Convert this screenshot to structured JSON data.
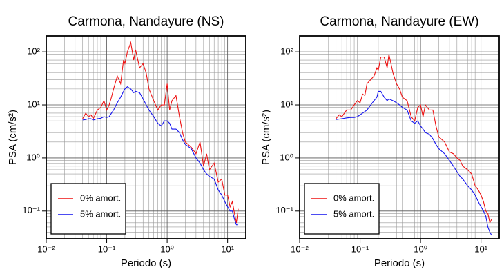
{
  "chart_data": [
    {
      "type": "line",
      "title": "Carmona, Nandayure (NS)",
      "xlabel": "Periodo (s)",
      "ylabel": "PSA (cm/s²)",
      "xscale": "log",
      "yscale": "log",
      "grid": true,
      "legend": "lower left",
      "xlim": [
        0.01,
        20
      ],
      "ylim": [
        0.03,
        200
      ],
      "xticks": [
        {
          "value": 0.01,
          "label": "10⁻²"
        },
        {
          "value": 0.1,
          "label": "10⁻¹"
        },
        {
          "value": 1,
          "label": "10⁰"
        },
        {
          "value": 10,
          "label": "10¹"
        }
      ],
      "yticks": [
        {
          "value": 0.1,
          "label": "10⁻¹"
        },
        {
          "value": 1,
          "label": "10⁰"
        },
        {
          "value": 10,
          "label": "10¹"
        },
        {
          "value": 100,
          "label": "10²"
        }
      ],
      "x": [
        0.04,
        0.045,
        0.05,
        0.055,
        0.06,
        0.07,
        0.08,
        0.09,
        0.1,
        0.11,
        0.12,
        0.13,
        0.15,
        0.17,
        0.19,
        0.2,
        0.22,
        0.25,
        0.28,
        0.3,
        0.35,
        0.4,
        0.45,
        0.5,
        0.6,
        0.7,
        0.8,
        0.9,
        1.0,
        1.1,
        1.2,
        1.4,
        1.6,
        1.8,
        2.0,
        2.5,
        3,
        3.5,
        4,
        4.5,
        5,
        6,
        7,
        8,
        9,
        10,
        11,
        12,
        13,
        14,
        15
      ],
      "series": [
        {
          "name": "0% amort.",
          "color": "#ee1111",
          "values": [
            5.5,
            7,
            6,
            6.5,
            5.5,
            8,
            9,
            12,
            8,
            10,
            14,
            20,
            35,
            25,
            70,
            60,
            100,
            150,
            70,
            110,
            50,
            60,
            40,
            20,
            12,
            8,
            10,
            10,
            25,
            8,
            12,
            15,
            6,
            3,
            2,
            1.6,
            1.2,
            2,
            0.7,
            1.2,
            0.6,
            0.8,
            0.35,
            0.4,
            0.2,
            0.2,
            0.12,
            0.15,
            0.09,
            0.06,
            0.11
          ]
        },
        {
          "name": "5% amort.",
          "color": "#1111ee",
          "values": [
            5.2,
            5.3,
            5.5,
            5.5,
            5.2,
            5.5,
            5.6,
            6,
            5.8,
            6,
            7,
            8,
            11,
            14,
            18,
            20,
            22,
            20,
            17,
            18,
            17,
            13,
            10,
            8,
            6,
            4.5,
            4,
            5,
            5,
            4.5,
            3.5,
            3.5,
            3,
            2.2,
            1.8,
            1.5,
            1.0,
            0.8,
            0.6,
            0.5,
            0.45,
            0.4,
            0.25,
            0.2,
            0.15,
            0.12,
            0.1,
            0.1,
            0.07,
            0.055,
            0.055
          ]
        }
      ]
    },
    {
      "type": "line",
      "title": "Carmona, Nandayure (EW)",
      "xlabel": "Periodo (s)",
      "ylabel": "PSA (cm/s²)",
      "xscale": "log",
      "yscale": "log",
      "grid": true,
      "legend": "lower left",
      "xlim": [
        0.01,
        20
      ],
      "ylim": [
        0.03,
        200
      ],
      "xticks": [
        {
          "value": 0.01,
          "label": "10⁻²"
        },
        {
          "value": 0.1,
          "label": "10⁻¹"
        },
        {
          "value": 1,
          "label": "10⁰"
        },
        {
          "value": 10,
          "label": "10¹"
        }
      ],
      "yticks": [
        {
          "value": 0.1,
          "label": "10⁻¹"
        },
        {
          "value": 1,
          "label": "10⁰"
        },
        {
          "value": 10,
          "label": "10¹"
        },
        {
          "value": 100,
          "label": "10²"
        }
      ],
      "x": [
        0.04,
        0.045,
        0.05,
        0.055,
        0.06,
        0.07,
        0.08,
        0.09,
        0.1,
        0.11,
        0.12,
        0.13,
        0.15,
        0.17,
        0.19,
        0.2,
        0.22,
        0.25,
        0.28,
        0.3,
        0.35,
        0.4,
        0.45,
        0.5,
        0.6,
        0.7,
        0.8,
        0.9,
        1.0,
        1.1,
        1.2,
        1.4,
        1.6,
        1.8,
        2.0,
        2.5,
        3,
        3.5,
        4,
        4.5,
        5,
        6,
        7,
        8,
        9,
        10,
        11,
        12,
        13,
        14,
        15
      ],
      "series": [
        {
          "name": "0% amort.",
          "color": "#ee1111",
          "values": [
            5.5,
            6.5,
            6,
            7,
            8,
            8,
            10,
            12,
            11,
            16,
            15,
            25,
            30,
            35,
            50,
            45,
            80,
            80,
            50,
            90,
            40,
            25,
            20,
            14,
            12,
            6,
            5,
            9,
            10,
            6,
            10,
            8,
            8,
            4,
            2.5,
            2,
            1.3,
            1.2,
            1.0,
            0.9,
            0.7,
            0.6,
            0.5,
            0.3,
            0.25,
            0.2,
            0.15,
            0.1,
            0.09,
            0.06,
            0.07
          ]
        },
        {
          "name": "5% amort.",
          "color": "#1111ee",
          "values": [
            5.3,
            5.4,
            5.5,
            5.6,
            5.7,
            5.8,
            5.8,
            6,
            6.5,
            7,
            7.5,
            8,
            10,
            12,
            14,
            18,
            18,
            14,
            12,
            13,
            12,
            11,
            10,
            9,
            8,
            5,
            4.5,
            5,
            4,
            3.5,
            3,
            2.8,
            2.3,
            1.8,
            1.5,
            1.2,
            0.9,
            0.7,
            0.55,
            0.45,
            0.4,
            0.3,
            0.25,
            0.2,
            0.15,
            0.12,
            0.1,
            0.08,
            0.05,
            0.04,
            0.035
          ]
        }
      ]
    }
  ]
}
